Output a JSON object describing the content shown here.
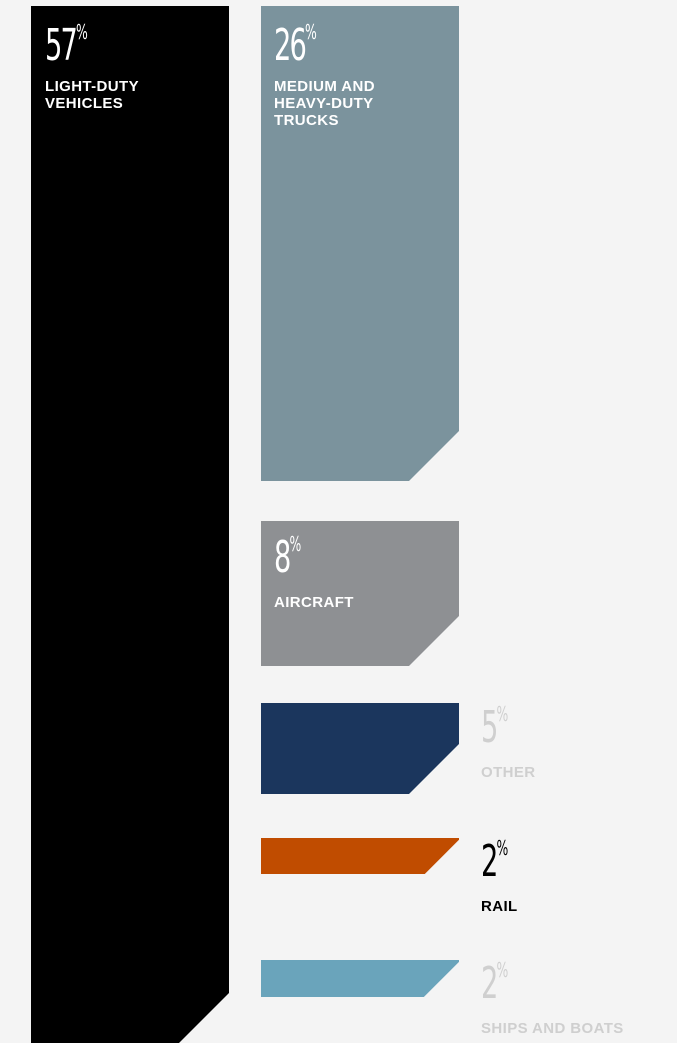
{
  "chart_data": {
    "type": "bar",
    "orientation": "vertical",
    "unit": "%",
    "categories": [
      "LIGHT-DUTY\nVEHICLES",
      "MEDIUM AND\nHEAVY-DUTY\nTRUCKS",
      "AIRCRAFT",
      "OTHER",
      "RAIL",
      "SHIPS AND BOATS"
    ],
    "values": [
      57,
      26,
      8,
      5,
      2,
      2
    ],
    "value_labels": [
      "57",
      "26",
      "8",
      "5",
      "2",
      "2"
    ],
    "percent_sign": "%",
    "colors": [
      "#000000",
      "#7b939d",
      "#8e9093",
      "#1b365d",
      "#c04c00",
      "#6aa4bb"
    ],
    "label_colors": [
      "#ffffff",
      "#ffffff",
      "#ffffff",
      "#cfcfcf",
      "#000000",
      "#cfcfcf"
    ]
  }
}
